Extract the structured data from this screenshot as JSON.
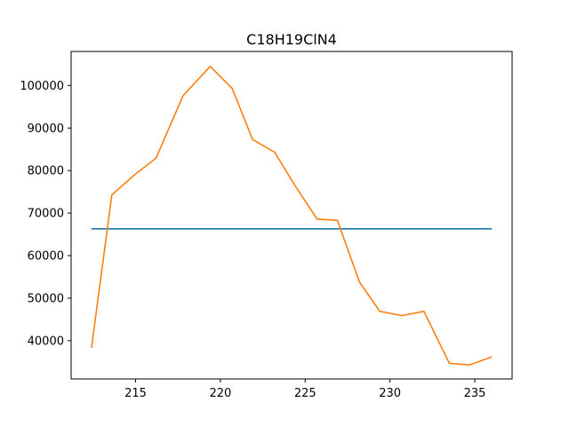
{
  "chart_data": {
    "type": "line",
    "title": "C18H19ClN4",
    "xlabel": "",
    "ylabel": "",
    "xlim": [
      211.2,
      237.2
    ],
    "ylim": [
      31000,
      108000
    ],
    "xticks": [
      215,
      220,
      225,
      230,
      235
    ],
    "yticks": [
      40000,
      50000,
      60000,
      70000,
      80000,
      90000,
      100000
    ],
    "grid": false,
    "series": [
      {
        "color": "#1f77b4",
        "x": [
          212.4,
          236.0
        ],
        "y": [
          66300,
          66300
        ]
      },
      {
        "color": "#ff7f0e",
        "x": [
          212.4,
          213.6,
          215.0,
          216.2,
          217.8,
          219.4,
          220.7,
          221.9,
          223.2,
          224.4,
          225.7,
          226.9,
          228.2,
          229.4,
          230.7,
          232.0,
          233.5,
          234.7,
          236.0
        ],
        "y": [
          38300,
          74300,
          79200,
          82900,
          97600,
          104500,
          99300,
          87300,
          84300,
          76500,
          68600,
          68300,
          53800,
          46900,
          45900,
          46900,
          34700,
          34300,
          36200
        ]
      }
    ]
  }
}
